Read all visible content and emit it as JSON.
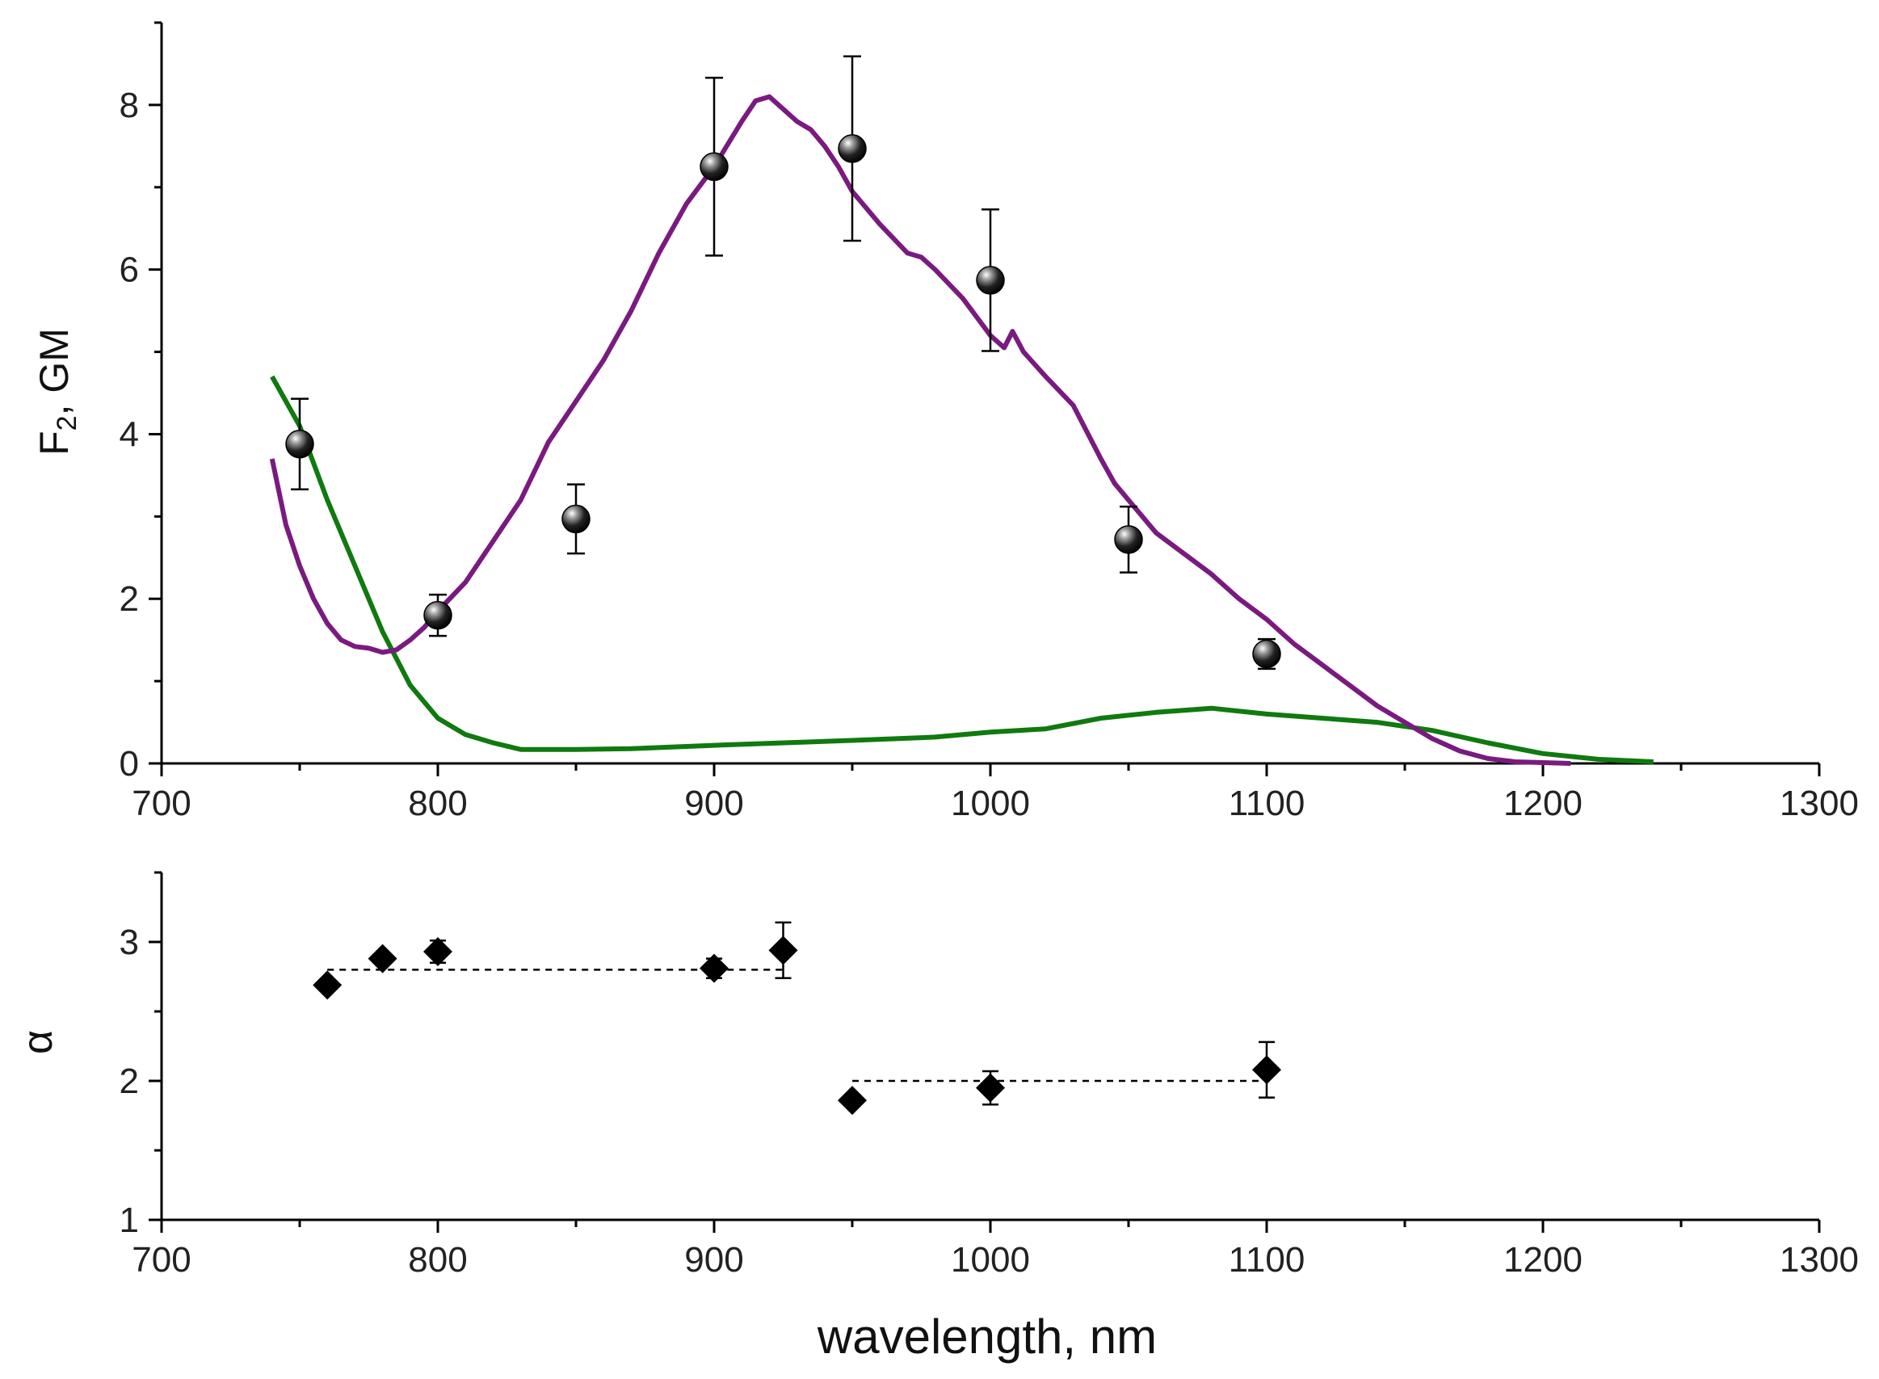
{
  "chart_data": [
    {
      "type": "line",
      "panel": "top",
      "ylabel_main": "F",
      "ylabel_sub": "2",
      "ylabel_rest": ", GM",
      "xlim": [
        700,
        1300
      ],
      "ylim": [
        0,
        9
      ],
      "x_ticks": [
        700,
        800,
        900,
        1000,
        1100,
        1200,
        1300
      ],
      "x_tick_labels": [
        "700",
        "800",
        "900",
        "1000",
        "1100",
        "1200",
        "1300"
      ],
      "y_ticks": [
        0,
        2,
        4,
        6,
        8
      ],
      "y_tick_labels": [
        "0",
        "2",
        "4",
        "6",
        "8"
      ],
      "colors": {
        "purple": "#7a1a80",
        "green": "#0f7a0f",
        "points": "#000000"
      },
      "series": [
        {
          "name": "purple-curve",
          "x": [
            740,
            745,
            750,
            755,
            760,
            765,
            770,
            775,
            780,
            785,
            790,
            795,
            800,
            810,
            820,
            830,
            840,
            850,
            860,
            870,
            880,
            890,
            900,
            910,
            915,
            920,
            925,
            930,
            935,
            940,
            945,
            950,
            960,
            970,
            975,
            980,
            990,
            1000,
            1005,
            1008,
            1012,
            1020,
            1030,
            1040,
            1045,
            1050,
            1055,
            1060,
            1070,
            1080,
            1090,
            1100,
            1110,
            1120,
            1130,
            1140,
            1150,
            1160,
            1170,
            1180,
            1190,
            1200,
            1210
          ],
          "y": [
            3.7,
            2.9,
            2.4,
            2.0,
            1.7,
            1.5,
            1.42,
            1.4,
            1.35,
            1.38,
            1.5,
            1.65,
            1.85,
            2.2,
            2.7,
            3.2,
            3.9,
            4.4,
            4.9,
            5.5,
            6.2,
            6.8,
            7.25,
            7.8,
            8.05,
            8.1,
            7.95,
            7.8,
            7.7,
            7.5,
            7.25,
            6.95,
            6.55,
            6.2,
            6.15,
            6.0,
            5.65,
            5.2,
            5.05,
            5.25,
            5.0,
            4.7,
            4.35,
            3.7,
            3.4,
            3.2,
            3.0,
            2.8,
            2.55,
            2.3,
            2.0,
            1.75,
            1.45,
            1.2,
            0.95,
            0.7,
            0.5,
            0.3,
            0.15,
            0.06,
            0.02,
            0.01,
            0.0
          ]
        },
        {
          "name": "green-curve",
          "x": [
            740,
            750,
            760,
            770,
            780,
            790,
            800,
            810,
            820,
            830,
            850,
            870,
            900,
            950,
            980,
            1000,
            1020,
            1040,
            1060,
            1080,
            1100,
            1120,
            1140,
            1160,
            1180,
            1200,
            1220,
            1240
          ],
          "y": [
            4.7,
            4.1,
            3.2,
            2.4,
            1.6,
            0.95,
            0.55,
            0.35,
            0.25,
            0.17,
            0.17,
            0.18,
            0.22,
            0.28,
            0.32,
            0.38,
            0.42,
            0.55,
            0.62,
            0.67,
            0.6,
            0.55,
            0.5,
            0.4,
            0.25,
            0.12,
            0.05,
            0.02
          ]
        },
        {
          "name": "measured-points",
          "x": [
            750,
            800,
            850,
            900,
            950,
            1000,
            1050,
            1100
          ],
          "y": [
            3.88,
            1.8,
            2.97,
            7.25,
            7.47,
            5.87,
            2.72,
            1.33
          ],
          "yerr": [
            0.55,
            0.25,
            0.42,
            1.08,
            1.12,
            0.86,
            0.4,
            0.18
          ]
        }
      ]
    },
    {
      "type": "scatter",
      "panel": "bottom",
      "xlabel": "wavelength, nm",
      "ylabel": "α",
      "xlim": [
        700,
        1300
      ],
      "ylim": [
        1,
        3.5
      ],
      "x_ticks": [
        700,
        800,
        900,
        1000,
        1100,
        1200,
        1300
      ],
      "x_tick_labels": [
        "700",
        "800",
        "900",
        "1000",
        "1100",
        "1200",
        "1300"
      ],
      "y_ticks": [
        1,
        2,
        3
      ],
      "y_tick_labels": [
        "1",
        "2",
        "3"
      ],
      "series": [
        {
          "name": "alpha-points",
          "x": [
            760,
            780,
            800,
            900,
            925,
            950,
            1000,
            1100
          ],
          "y": [
            2.69,
            2.88,
            2.93,
            2.81,
            2.94,
            1.86,
            1.95,
            2.08
          ],
          "yerr": [
            0.0,
            0.0,
            0.08,
            0.07,
            0.2,
            0.0,
            0.12,
            0.2
          ]
        }
      ],
      "reference_lines": [
        {
          "name": "alpha-level-3",
          "x": [
            760,
            925
          ],
          "y": 2.8
        },
        {
          "name": "alpha-level-2",
          "x": [
            950,
            1100
          ],
          "y": 2.0
        }
      ]
    }
  ]
}
